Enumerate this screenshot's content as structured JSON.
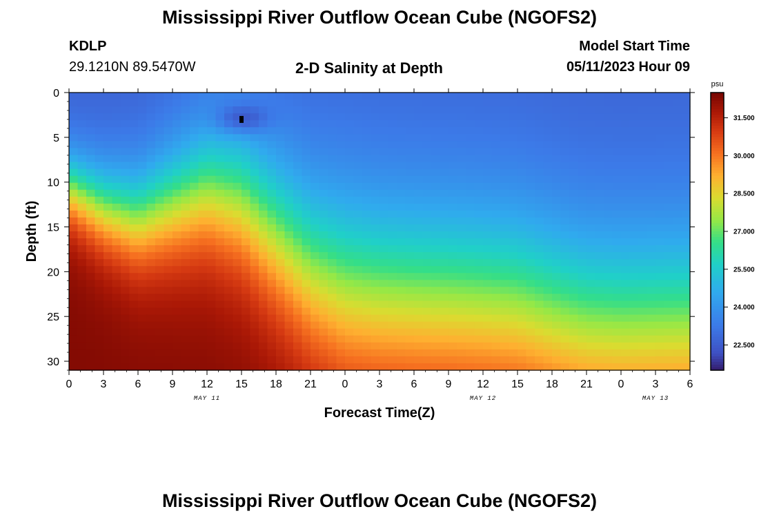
{
  "header": {
    "title": "Mississippi River Outflow Ocean Cube (NGOFS2)",
    "station_id": "KDLP",
    "station_coords": "29.1210N  89.5470W",
    "subtitle": "2-D Salinity at Depth",
    "model_start_label": "Model Start Time",
    "model_start_value": "05/11/2023 Hour 09"
  },
  "footer": {
    "title": "Mississippi River Outflow Ocean Cube (NGOFS2)"
  },
  "chart_data": {
    "type": "heatmap",
    "title": "2-D Salinity at Depth",
    "xlabel": "Forecast Time(Z)",
    "ylabel": "Depth (ft)",
    "x_ticks": [
      "0",
      "3",
      "6",
      "9",
      "12",
      "15",
      "18",
      "21",
      "0",
      "3",
      "6",
      "9",
      "12",
      "15",
      "18",
      "21",
      "0",
      "3",
      "6"
    ],
    "x_range_hours": [
      0,
      54
    ],
    "day_labels": [
      {
        "label": "MAY 11",
        "hour": 12
      },
      {
        "label": "MAY 12",
        "hour": 36
      },
      {
        "label": "MAY 13",
        "hour": 51
      }
    ],
    "y_ticks": [
      0,
      5,
      10,
      15,
      20,
      25,
      30
    ],
    "ylim": [
      0,
      31
    ],
    "y_inverted": true,
    "colorbar": {
      "unit": "psu",
      "min": 21.5,
      "max": 32.5,
      "ticks": [
        "31.500",
        "30.000",
        "28.500",
        "27.000",
        "25.500",
        "24.000",
        "22.500"
      ],
      "tick_values": [
        31.5,
        30.0,
        28.5,
        27.0,
        25.5,
        24.0,
        22.5
      ]
    },
    "fresh_layer_salinity_psu": 22.6,
    "deep_salinity_psu": 32.3,
    "halocline_depth_ft": [
      {
        "hour": 0,
        "depth": 10.5
      },
      {
        "hour": 3,
        "depth": 12.8
      },
      {
        "hour": 6,
        "depth": 14.0
      },
      {
        "hour": 9,
        "depth": 12.3
      },
      {
        "hour": 12,
        "depth": 10.7
      },
      {
        "hour": 15,
        "depth": 11.8
      },
      {
        "hour": 18,
        "depth": 15.5
      },
      {
        "hour": 21,
        "depth": 19.3
      },
      {
        "hour": 24,
        "depth": 21.3
      },
      {
        "hour": 27,
        "depth": 22.0
      },
      {
        "hour": 30,
        "depth": 22.3
      },
      {
        "hour": 33,
        "depth": 22.5
      },
      {
        "hour": 36,
        "depth": 22.8
      },
      {
        "hour": 39,
        "depth": 23.2
      },
      {
        "hour": 42,
        "depth": 24.5
      },
      {
        "hour": 45,
        "depth": 25.6
      },
      {
        "hour": 48,
        "depth": 25.9
      },
      {
        "hour": 51,
        "depth": 25.8
      },
      {
        "hour": 54,
        "depth": 25.7
      }
    ],
    "low_salinity_pocket": {
      "hour": 15,
      "depth_ft": 3,
      "salinity_psu": 21.5
    },
    "grid": false
  }
}
